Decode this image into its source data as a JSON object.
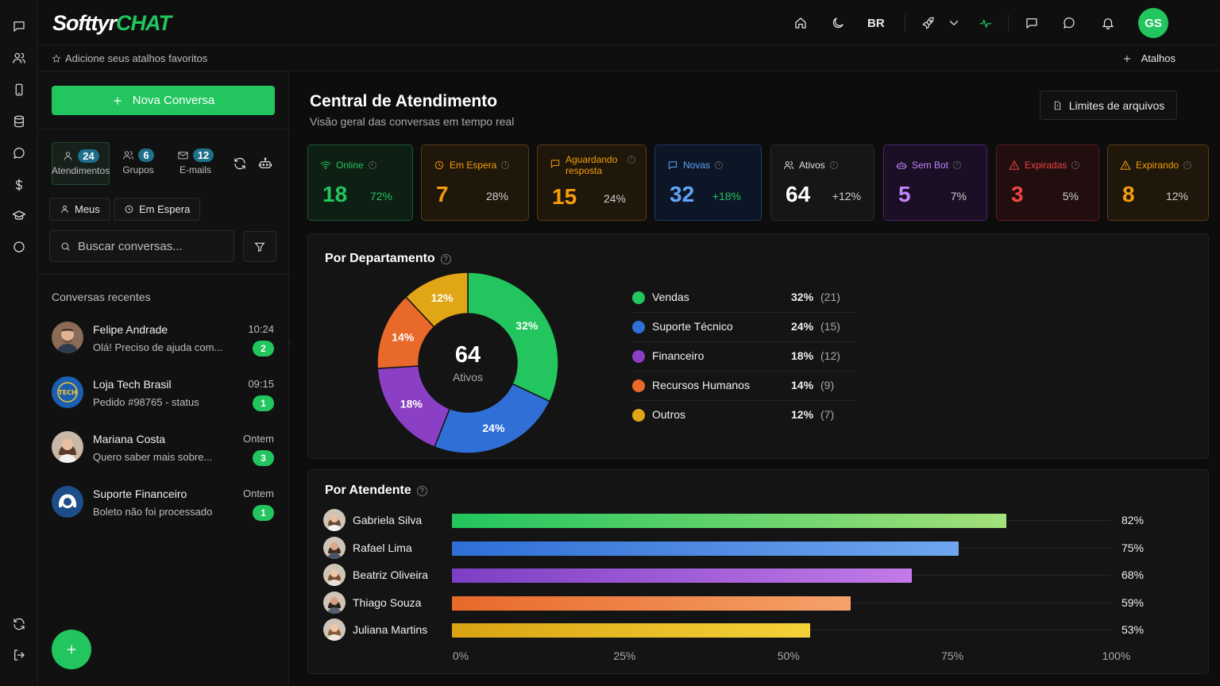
{
  "app": {
    "brand_white": "Softtyr",
    "brand_green": "CHAT"
  },
  "topbar": {
    "language": "BR",
    "user_initials": "GS"
  },
  "subbar": {
    "hint": "Adicione seus atalhos favoritos",
    "shortcuts_label": "Atalhos"
  },
  "sidebar": {
    "new_conversation": "Nova Conversa",
    "tabs": [
      {
        "label": "Atendimentos",
        "count": "24"
      },
      {
        "label": "Grupos",
        "count": "6"
      },
      {
        "label": "E-mails",
        "count": "12"
      }
    ],
    "chips": [
      "Meus",
      "Em Espera"
    ],
    "search_placeholder": "Buscar conversas...",
    "recent_title": "Conversas recentes",
    "conversations": [
      {
        "name": "Felipe Andrade",
        "preview": "Olá! Preciso de ajuda com...",
        "time": "10:24",
        "unread": "2"
      },
      {
        "name": "Loja Tech Brasil",
        "preview": "Pedido #98765 - status",
        "time": "09:15",
        "unread": "1"
      },
      {
        "name": "Mariana Costa",
        "preview": "Quero saber mais sobre...",
        "time": "Ontem",
        "unread": "3"
      },
      {
        "name": "Suporte Financeiro",
        "preview": "Boleto não foi processado",
        "time": "Ontem",
        "unread": "1"
      }
    ]
  },
  "main": {
    "title": "Central de Atendimento",
    "subtitle": "Visão geral das conversas em tempo real",
    "limits_button": "Limites de arquivos",
    "kpis": [
      {
        "label": "Online",
        "value": "18",
        "pct": "72%",
        "color": "#22c55e"
      },
      {
        "label": "Em Espera",
        "value": "7",
        "pct": "28%",
        "color": "#f59e0b"
      },
      {
        "label": "Aguardando resposta",
        "value": "15",
        "pct": "24%",
        "color": "#f59e0b"
      },
      {
        "label": "Novas",
        "value": "32",
        "pct": "+18%",
        "color": "#60a5fa"
      },
      {
        "label": "Ativos",
        "value": "64",
        "pct": "+12%",
        "color": "#e8e8e8"
      },
      {
        "label": "Sem Bot",
        "value": "5",
        "pct": "7%",
        "color": "#c084fc"
      },
      {
        "label": "Expiradas",
        "value": "3",
        "pct": "5%",
        "color": "#ef4444"
      },
      {
        "label": "Expirando",
        "value": "8",
        "pct": "12%",
        "color": "#f59e0b"
      }
    ],
    "department_title": "Por Departamento",
    "department_center_value": "64",
    "department_center_label": "Ativos",
    "attendant_title": "Por Atendente"
  },
  "chart_data": [
    {
      "type": "pie",
      "title": "Por Departamento",
      "categories": [
        "Vendas",
        "Suporte Técnico",
        "Financeiro",
        "Recursos Humanos",
        "Outros"
      ],
      "values": [
        32,
        24,
        18,
        14,
        12
      ],
      "counts": [
        "(21)",
        "(15)",
        "(12)",
        "(9)",
        "(7)"
      ],
      "labels": [
        "32%",
        "24%",
        "18%",
        "14%",
        "12%"
      ],
      "colors": [
        "#22c55e",
        "#2f6fd6",
        "#8b3fc4",
        "#e8692a",
        "#e0a615"
      ]
    },
    {
      "type": "bar",
      "title": "Por Atendente",
      "categories": [
        "Gabriela Silva",
        "Rafael Lima",
        "Beatriz Oliveira",
        "Thiago Souza",
        "Juliana Martins"
      ],
      "values": [
        82,
        75,
        68,
        59,
        53
      ],
      "labels": [
        "82%",
        "75%",
        "68%",
        "59%",
        "53%"
      ],
      "xlim": [
        0,
        100
      ],
      "xticks": [
        "0%",
        "25%",
        "50%",
        "75%",
        "100%"
      ],
      "gradients": [
        [
          "#22c55e",
          "#a3e07a"
        ],
        [
          "#2f6fd6",
          "#6fa6ee"
        ],
        [
          "#7c3fc4",
          "#c27ae8"
        ],
        [
          "#e8692a",
          "#f5a26a"
        ],
        [
          "#d9a312",
          "#f5d23a"
        ]
      ]
    }
  ]
}
